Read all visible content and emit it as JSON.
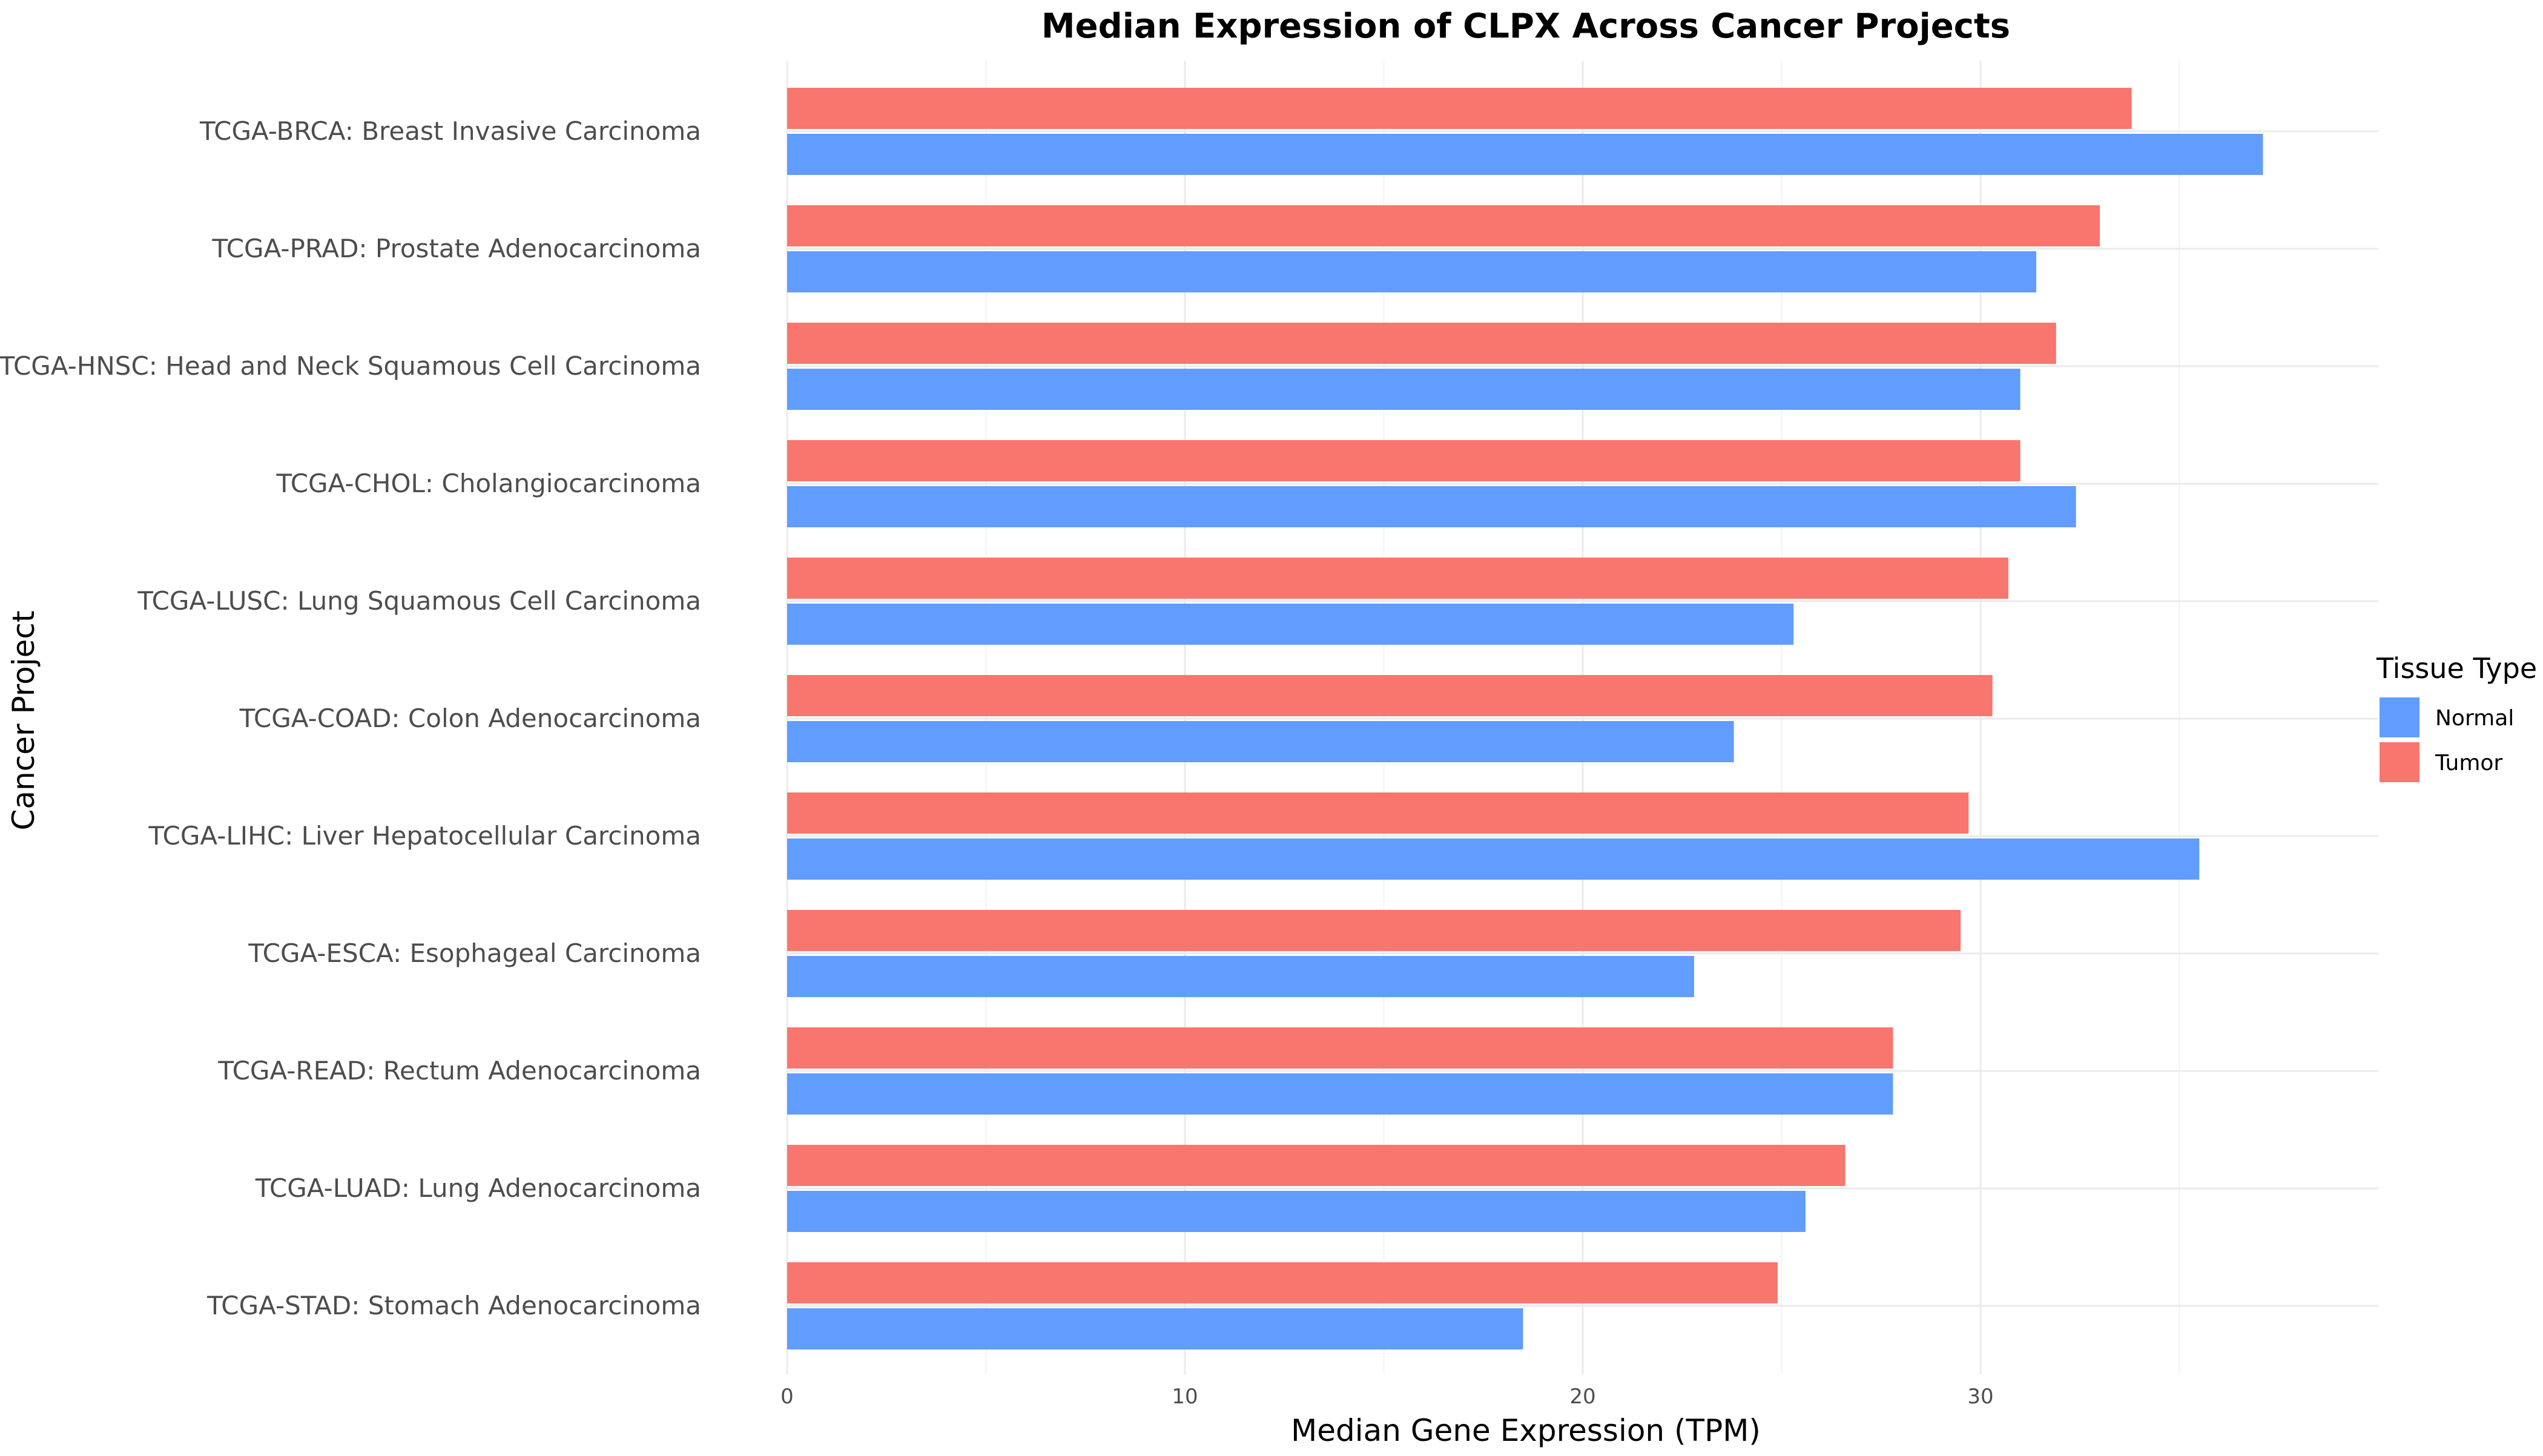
{
  "chart_data": {
    "type": "bar",
    "orientation": "horizontal",
    "title": "Median Expression of CLPX Across Cancer Projects",
    "xlabel": "Median Gene Expression (TPM)",
    "ylabel": "Cancer Project",
    "xlim": [
      0,
      40
    ],
    "xticks": [
      0,
      10,
      20,
      30
    ],
    "grid": true,
    "legend": {
      "title": "Tissue Type",
      "placement": "right"
    },
    "categories": [
      "TCGA-BRCA: Breast Invasive Carcinoma",
      "TCGA-PRAD: Prostate Adenocarcinoma",
      "TCGA-HNSC: Head and Neck Squamous Cell Carcinoma",
      "TCGA-CHOL: Cholangiocarcinoma",
      "TCGA-LUSC: Lung Squamous Cell Carcinoma",
      "TCGA-COAD: Colon Adenocarcinoma",
      "TCGA-LIHC: Liver Hepatocellular Carcinoma",
      "TCGA-ESCA: Esophageal Carcinoma",
      "TCGA-READ: Rectum Adenocarcinoma",
      "TCGA-LUAD: Lung Adenocarcinoma",
      "TCGA-STAD: Stomach Adenocarcinoma"
    ],
    "series": [
      {
        "name": "Normal",
        "color": "#619cff",
        "values": [
          37.1,
          31.4,
          31.0,
          32.4,
          25.3,
          23.8,
          35.5,
          22.8,
          27.8,
          25.6,
          18.5
        ]
      },
      {
        "name": "Tumor",
        "color": "#f8766d",
        "values": [
          33.8,
          33.0,
          31.9,
          31.0,
          30.7,
          30.3,
          29.7,
          29.5,
          27.8,
          26.6,
          24.9
        ]
      }
    ]
  }
}
